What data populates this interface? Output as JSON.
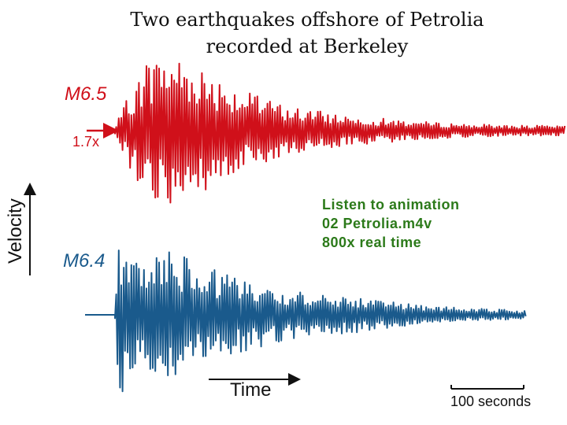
{
  "title_lines": [
    "Two earthquakes offshore of Petrolia",
    "recorded at Berkeley"
  ],
  "annotation": {
    "lines": [
      "Listen to animation",
      "02 Petrolia.m4v",
      "800x real time"
    ],
    "color": "#2c7a1a"
  },
  "chart_data": {
    "type": "line",
    "title": "Two earthquakes offshore of Petrolia recorded at Berkeley",
    "xlabel": "Time",
    "ylabel": "Velocity",
    "scale_bar_label": "100 seconds",
    "grid": false,
    "series": [
      {
        "name": "M6.5",
        "amplitude_scale_label": "1.7x",
        "color": "#d0101a",
        "description": "seismogram, relative velocity vs time",
        "peak_envelope": [
          {
            "t": 0,
            "a": 0.05
          },
          {
            "t": 15,
            "a": 0.4
          },
          {
            "t": 40,
            "a": 0.9
          },
          {
            "t": 70,
            "a": 1.0
          },
          {
            "t": 110,
            "a": 0.8
          },
          {
            "t": 160,
            "a": 0.5
          },
          {
            "t": 220,
            "a": 0.3
          },
          {
            "t": 300,
            "a": 0.18
          },
          {
            "t": 400,
            "a": 0.1
          },
          {
            "t": 480,
            "a": 0.07
          },
          {
            "t": 560,
            "a": 0.06
          }
        ]
      },
      {
        "name": "M6.4",
        "color": "#1a5a8c",
        "description": "seismogram, relative velocity vs time",
        "peak_envelope": [
          {
            "t": 0,
            "a": 0.05
          },
          {
            "t": 5,
            "a": 1.0
          },
          {
            "t": 30,
            "a": 0.7
          },
          {
            "t": 70,
            "a": 0.8
          },
          {
            "t": 110,
            "a": 0.6
          },
          {
            "t": 160,
            "a": 0.45
          },
          {
            "t": 220,
            "a": 0.3
          },
          {
            "t": 300,
            "a": 0.22
          },
          {
            "t": 380,
            "a": 0.12
          },
          {
            "t": 450,
            "a": 0.08
          },
          {
            "t": 520,
            "a": 0.05
          }
        ]
      }
    ]
  }
}
